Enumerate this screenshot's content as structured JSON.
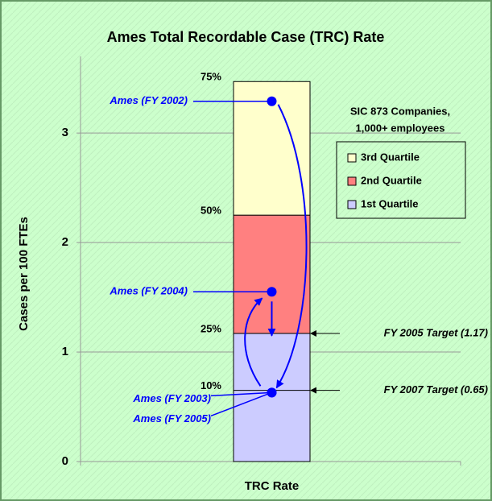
{
  "chart_data": {
    "type": "stacked_bar",
    "title": "Ames Total Recordable Case (TRC) Rate",
    "y_label": "Cases per 100 FTEs",
    "categories": [
      "TRC Rate"
    ],
    "ylim": [
      0,
      3.7
    ],
    "yticks": [
      0,
      1,
      2,
      3
    ],
    "grid": true,
    "legend_title": [
      "SIC 873 Companies,",
      "1,000+ employees"
    ],
    "series": [
      {
        "name": "1st Quartile",
        "color": "#ccccff",
        "values": [
          1.17
        ],
        "percentile": "25%"
      },
      {
        "name": "2nd Quartile",
        "color": "#ff8080",
        "values": [
          1.08
        ],
        "percentile": "50%"
      },
      {
        "name": "3rd Quartile",
        "color": "#ffffcc",
        "values": [
          1.22
        ],
        "percentile": "75%"
      }
    ],
    "points": [
      {
        "label": "Ames (FY 2002)",
        "value": 3.29
      },
      {
        "label": "Ames (FY 2003)",
        "value": 0.63
      },
      {
        "label": "Ames (FY 2004)",
        "value": 1.55
      },
      {
        "label": "Ames (FY 2005)",
        "value": 0.63
      }
    ],
    "point_color": "#0000ff",
    "targets": [
      {
        "label": "FY 2005 Target (1.17)",
        "value": 1.17
      },
      {
        "label": "FY 2007 Target (0.65)",
        "value": 0.65,
        "percentile": "10%"
      }
    ]
  }
}
